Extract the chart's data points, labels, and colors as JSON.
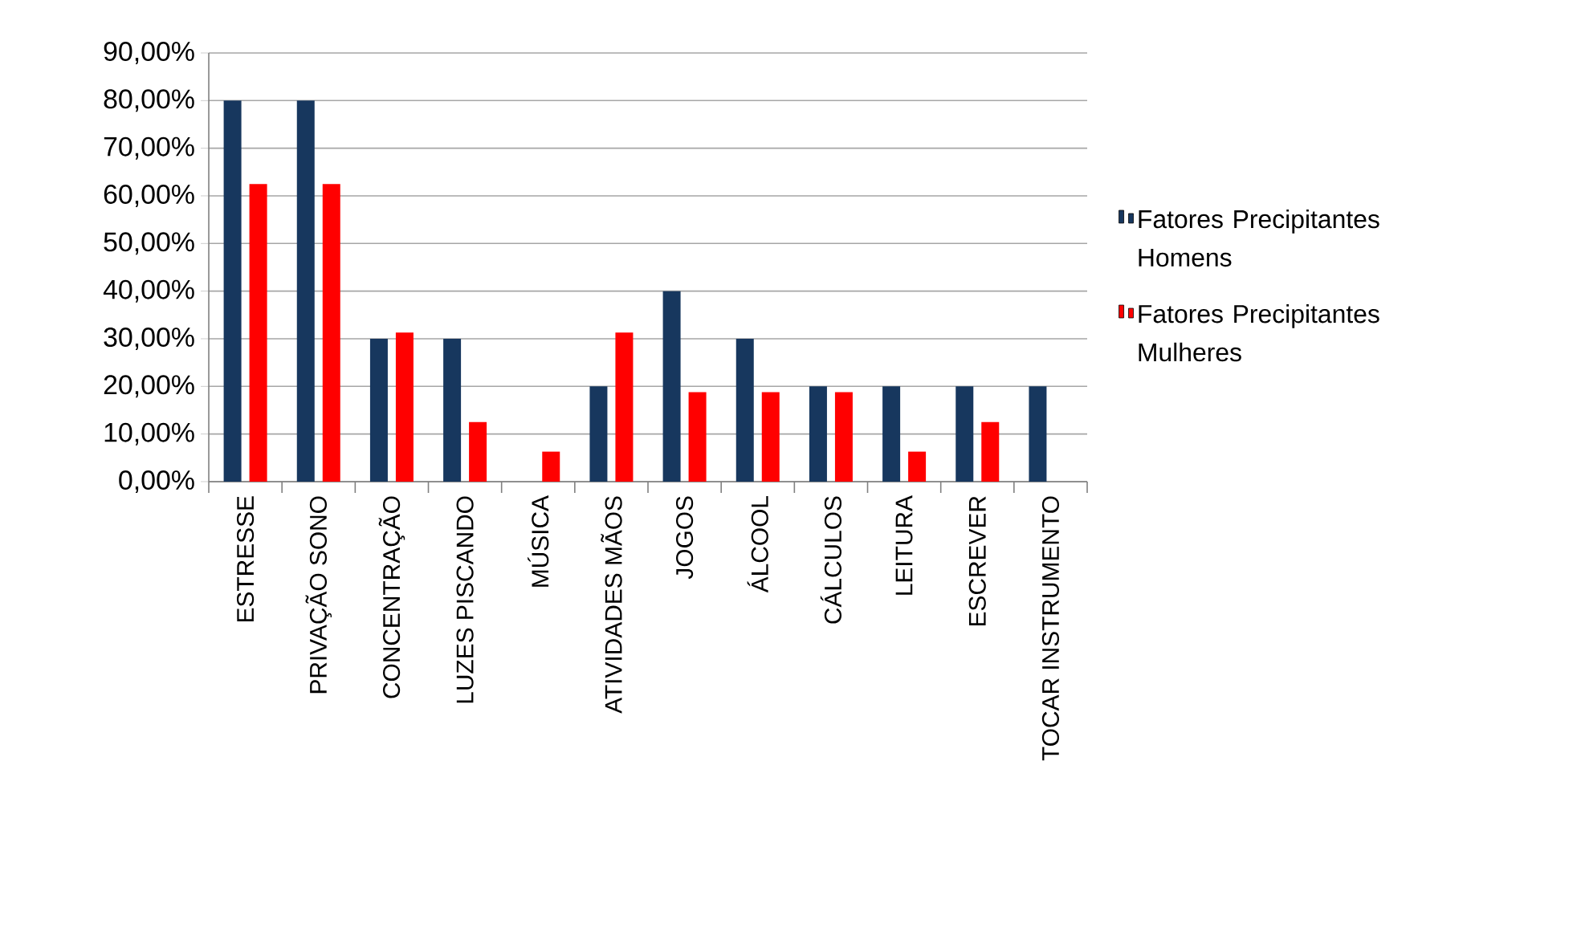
{
  "chart_data": {
    "type": "bar",
    "categories": [
      "ESTRESSE",
      "PRIVAÇÃO  SONO",
      "CONCENTRAÇÃO",
      "LUZES PISCANDO",
      "MÚSICA",
      "ATIVIDADES MÃOS",
      "JOGOS",
      "ÁLCOOL",
      "CÁLCULOS",
      "LEITURA",
      "ESCREVER",
      "TOCAR INSTRUMENTO"
    ],
    "series": [
      {
        "name": "Fatores Precipitantes Homens",
        "color": "#17375e",
        "values": [
          80,
          80,
          30,
          30,
          0,
          20,
          40,
          30,
          20,
          20,
          20,
          20
        ]
      },
      {
        "name": "Fatores Precipitantes Mulheres",
        "color": "#ff0000",
        "values": [
          62.5,
          62.5,
          31.3,
          12.5,
          6.3,
          31.3,
          18.8,
          18.8,
          18.8,
          6.3,
          12.5,
          0
        ]
      }
    ],
    "ylim": [
      0,
      90
    ],
    "yticks": [
      {
        "value": 0,
        "label": "0,00%"
      },
      {
        "value": 10,
        "label": "10,00%"
      },
      {
        "value": 20,
        "label": "20,00%"
      },
      {
        "value": 30,
        "label": "30,00%"
      },
      {
        "value": 40,
        "label": "40,00%"
      },
      {
        "value": 50,
        "label": "50,00%"
      },
      {
        "value": 60,
        "label": "60,00%"
      },
      {
        "value": 70,
        "label": "70,00%"
      },
      {
        "value": 80,
        "label": "80,00%"
      },
      {
        "value": 90,
        "label": "90,00%"
      }
    ],
    "grid": "y",
    "legend": "right"
  }
}
